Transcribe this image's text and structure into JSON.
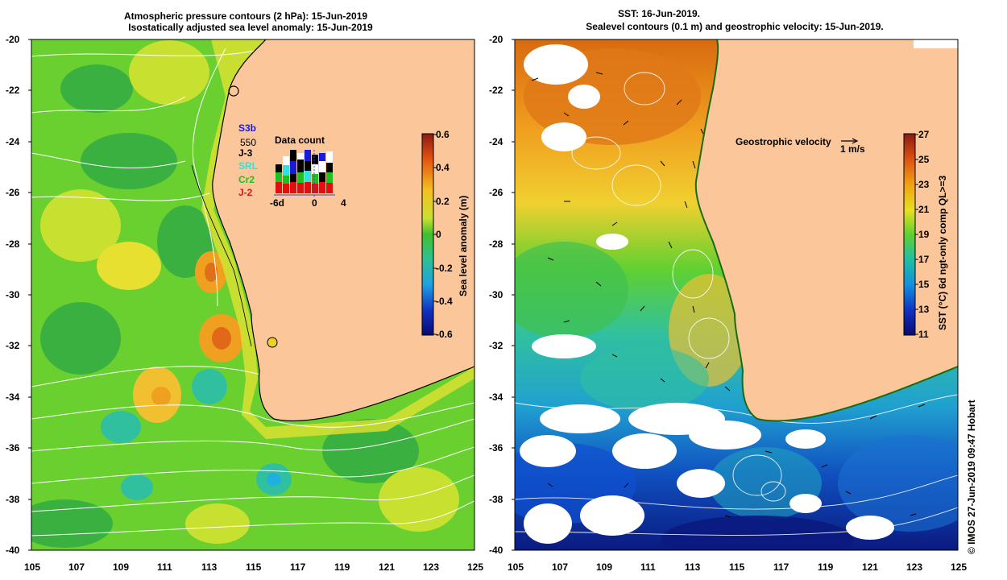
{
  "left_panel": {
    "title_line1": "Atmospheric pressure contours (2 hPa): 15-Jun-2019",
    "title_line2": "Isostatically adjusted sea level anomaly: 15-Jun-2019",
    "lat_labels": [
      "-20",
      "-22",
      "-24",
      "-26",
      "-28",
      "-30",
      "-32",
      "-34",
      "-36",
      "-38",
      "-40"
    ],
    "lon_labels": [
      "105",
      "107",
      "109",
      "111",
      "113",
      "115",
      "117",
      "119",
      "121",
      "123",
      "125"
    ],
    "colorbar": {
      "label": "Sea level anomaly (m)",
      "ticks": [
        "0.6",
        "0.4",
        "0.2",
        "0",
        "-0.2",
        "-0.4",
        "-0.6"
      ],
      "range": [
        -0.6,
        0.6
      ]
    },
    "satellites": [
      {
        "name": "S3b",
        "color": "#1a1adc"
      },
      {
        "name": "550",
        "color": "#000000"
      },
      {
        "name": "J-3",
        "color": "#000000"
      },
      {
        "name": "SRL",
        "color": "#33e0e0"
      },
      {
        "name": "Cr2",
        "color": "#20c020"
      },
      {
        "name": "J-2",
        "color": "#e01010"
      }
    ],
    "data_count": {
      "title": "Data count",
      "x_ticks": [
        "-6d",
        "0",
        "4"
      ]
    }
  },
  "right_panel": {
    "title_line1": "SST: 16-Jun-2019.",
    "title_line2": "Sealevel contours (0.1 m) and geostrophic velocity: 15-Jun-2019.",
    "lat_labels": [
      "-20",
      "-22",
      "-24",
      "-26",
      "-28",
      "-30",
      "-32",
      "-34",
      "-36",
      "-38",
      "-40"
    ],
    "lon_labels": [
      "105",
      "107",
      "109",
      "111",
      "113",
      "115",
      "117",
      "119",
      "121",
      "123",
      "125"
    ],
    "velocity_legend": {
      "label": "Geostrophic velocity",
      "scale": "1 m/s"
    },
    "colorbar": {
      "label": "SST (°C) 6d ngt-only comp QL>=3",
      "ticks": [
        "27",
        "25",
        "23",
        "21",
        "19",
        "17",
        "15",
        "13",
        "11"
      ],
      "range": [
        11,
        27
      ]
    }
  },
  "credit": "© IMOS 27-Jun-2019 09:47 Hobart",
  "colors": {
    "land": "#fbc79a",
    "sla_positive": "#f5c020",
    "sla_neutral": "#6ad030",
    "sst_warm": "#d86a10",
    "sst_cool": "#0a2a90"
  }
}
